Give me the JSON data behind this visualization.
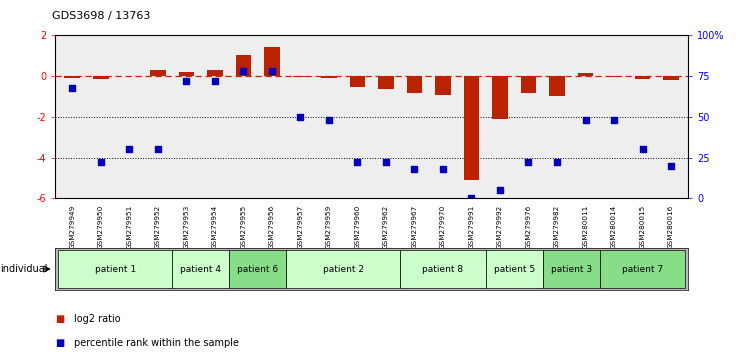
{
  "title": "GDS3698 / 13763",
  "samples": [
    "GSM279949",
    "GSM279950",
    "GSM279951",
    "GSM279952",
    "GSM279953",
    "GSM279954",
    "GSM279955",
    "GSM279956",
    "GSM279957",
    "GSM279959",
    "GSM279960",
    "GSM279962",
    "GSM279967",
    "GSM279970",
    "GSM279991",
    "GSM279992",
    "GSM279976",
    "GSM279982",
    "GSM280011",
    "GSM280014",
    "GSM280015",
    "GSM280016"
  ],
  "log2_ratio": [
    -0.1,
    -0.12,
    0.0,
    0.3,
    0.22,
    0.3,
    1.05,
    1.45,
    -0.05,
    -0.1,
    -0.55,
    -0.65,
    -0.85,
    -0.95,
    -5.1,
    -2.1,
    -0.85,
    -1.0,
    0.15,
    -0.05,
    -0.15,
    -0.2
  ],
  "percentile": [
    68,
    22,
    30,
    30,
    72,
    72,
    78,
    78,
    50,
    48,
    22,
    22,
    18,
    18,
    0,
    5,
    22,
    22,
    48,
    48,
    30,
    20
  ],
  "patients": [
    {
      "label": "patient 1",
      "start": 0,
      "end": 4,
      "color": "#ccffcc"
    },
    {
      "label": "patient 4",
      "start": 4,
      "end": 6,
      "color": "#ccffcc"
    },
    {
      "label": "patient 6",
      "start": 6,
      "end": 8,
      "color": "#88dd88"
    },
    {
      "label": "patient 2",
      "start": 8,
      "end": 12,
      "color": "#ccffcc"
    },
    {
      "label": "patient 8",
      "start": 12,
      "end": 15,
      "color": "#ccffcc"
    },
    {
      "label": "patient 5",
      "start": 15,
      "end": 17,
      "color": "#ccffcc"
    },
    {
      "label": "patient 3",
      "start": 17,
      "end": 19,
      "color": "#88dd88"
    },
    {
      "label": "patient 7",
      "start": 19,
      "end": 22,
      "color": "#88dd88"
    }
  ],
  "ylim_left": [
    -6,
    2
  ],
  "ylim_right": [
    0,
    100
  ],
  "yticks_left": [
    -6,
    -4,
    -2,
    0,
    2
  ],
  "yticks_right": [
    0,
    25,
    50,
    75,
    100
  ],
  "yticklabels_right": [
    "0",
    "25",
    "50",
    "75",
    "100%"
  ],
  "dotted_lines": [
    -2,
    -4
  ],
  "bar_color": "#bb2200",
  "point_color": "#0000bb",
  "dashed_color": "#cc2200",
  "header_bg": "#bbbbbb",
  "plot_bg": "#eeeeee",
  "legend_items": [
    {
      "label": "log2 ratio",
      "color": "#bb2200"
    },
    {
      "label": "percentile rank within the sample",
      "color": "#0000bb"
    }
  ]
}
